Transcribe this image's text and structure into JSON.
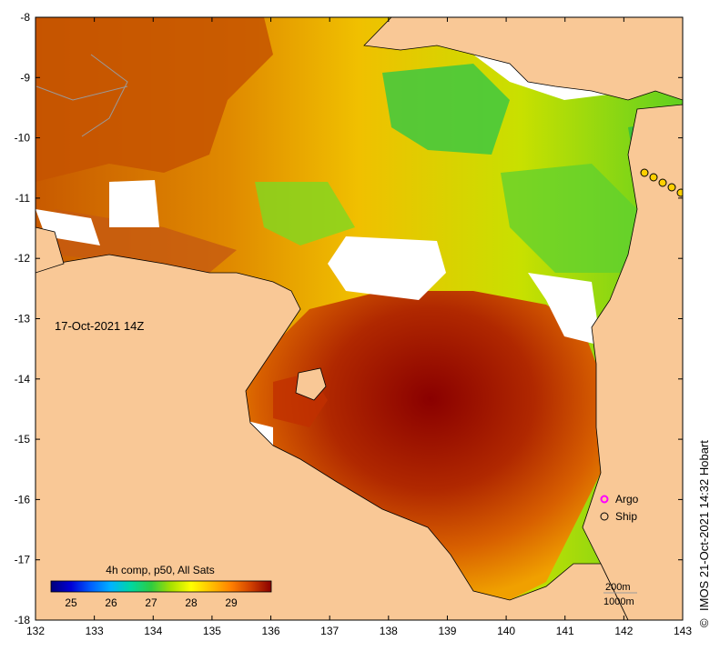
{
  "map": {
    "timestamp_label": "17-Oct-2021 14Z",
    "x_ticks": [
      "132",
      "133",
      "134",
      "135",
      "136",
      "137",
      "138",
      "139",
      "140",
      "141",
      "142",
      "143"
    ],
    "y_ticks": [
      "-8",
      "-9",
      "-10",
      "-11",
      "-12",
      "-13",
      "-14",
      "-15",
      "-16",
      "-17",
      "-18"
    ],
    "x_range": [
      132,
      143
    ],
    "y_range": [
      -18,
      -8
    ],
    "colors": {
      "land": "#f9c896",
      "cloud": "#ffffff",
      "coast": "#000000",
      "isobath": "#9a9a9a"
    }
  },
  "legend": {
    "markers": [
      {
        "label": "Argo",
        "color": "#ff00ff",
        "icon": "argo-marker-icon"
      },
      {
        "label": "Ship",
        "color": "#000000",
        "icon": "ship-marker-icon"
      }
    ]
  },
  "colorbar": {
    "title": "4h comp, p50, All Sats",
    "ticks": [
      "25",
      "26",
      "27",
      "28",
      "29"
    ],
    "stops": [
      "#00007a",
      "#0000d6",
      "#0060ff",
      "#00b4ff",
      "#00d8a0",
      "#2ecc40",
      "#a8e000",
      "#ffff00",
      "#ffc000",
      "#ff8000",
      "#d04000",
      "#8a0000"
    ]
  },
  "isobath_legend": {
    "lines": [
      "200m",
      "1000m"
    ]
  },
  "credit": {
    "text": "IMOS 21-Oct-2021 14:32 Hobart",
    "symbol": "©"
  }
}
